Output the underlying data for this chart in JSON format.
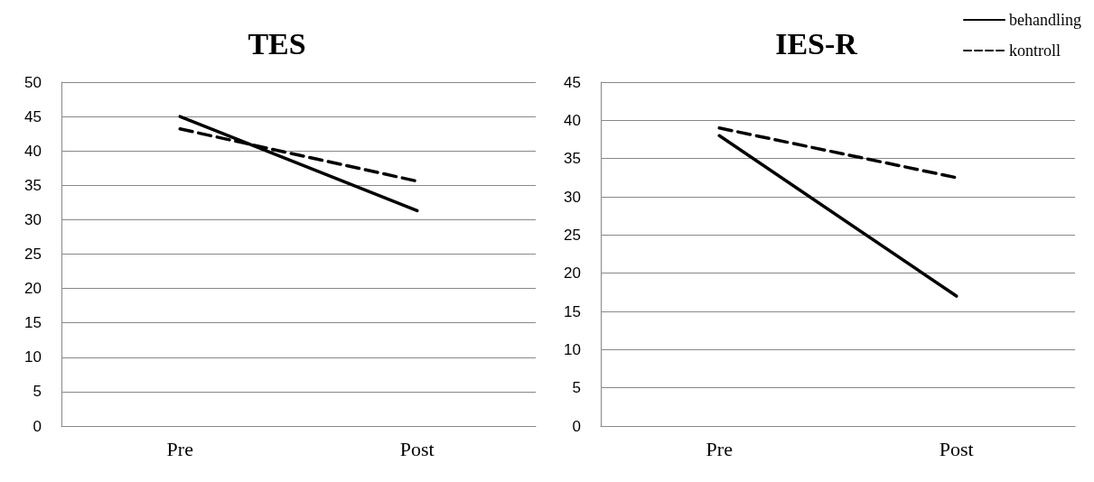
{
  "chart_data": [
    {
      "type": "line",
      "title": "TES",
      "categories": [
        "Pre",
        "Post"
      ],
      "ylim": [
        0,
        50
      ],
      "yticks": [
        0,
        5,
        10,
        15,
        20,
        25,
        30,
        35,
        40,
        45,
        50
      ],
      "grid": "y",
      "legend": false,
      "line_style": "solid",
      "series": [
        {
          "color": "#000000",
          "values": [
            45,
            31.3
          ]
        },
        {
          "color": "#000000",
          "values": [
            43.2,
            35.6
          ],
          "line_style": "dashed"
        }
      ]
    },
    {
      "type": "line",
      "title": "IES-R",
      "categories": [
        "Pre",
        "Post"
      ],
      "ylim": [
        0,
        45
      ],
      "yticks": [
        0,
        5,
        10,
        15,
        20,
        25,
        30,
        35,
        40,
        45
      ],
      "grid": "y",
      "legend": "top right",
      "line_style": "solid",
      "series": [
        {
          "name": "behandling",
          "color": "#000000",
          "values": [
            38,
            17
          ]
        },
        {
          "name": "kontroll",
          "color": "#000000",
          "values": [
            39,
            32.5
          ],
          "line_style": "dashed"
        }
      ]
    }
  ]
}
